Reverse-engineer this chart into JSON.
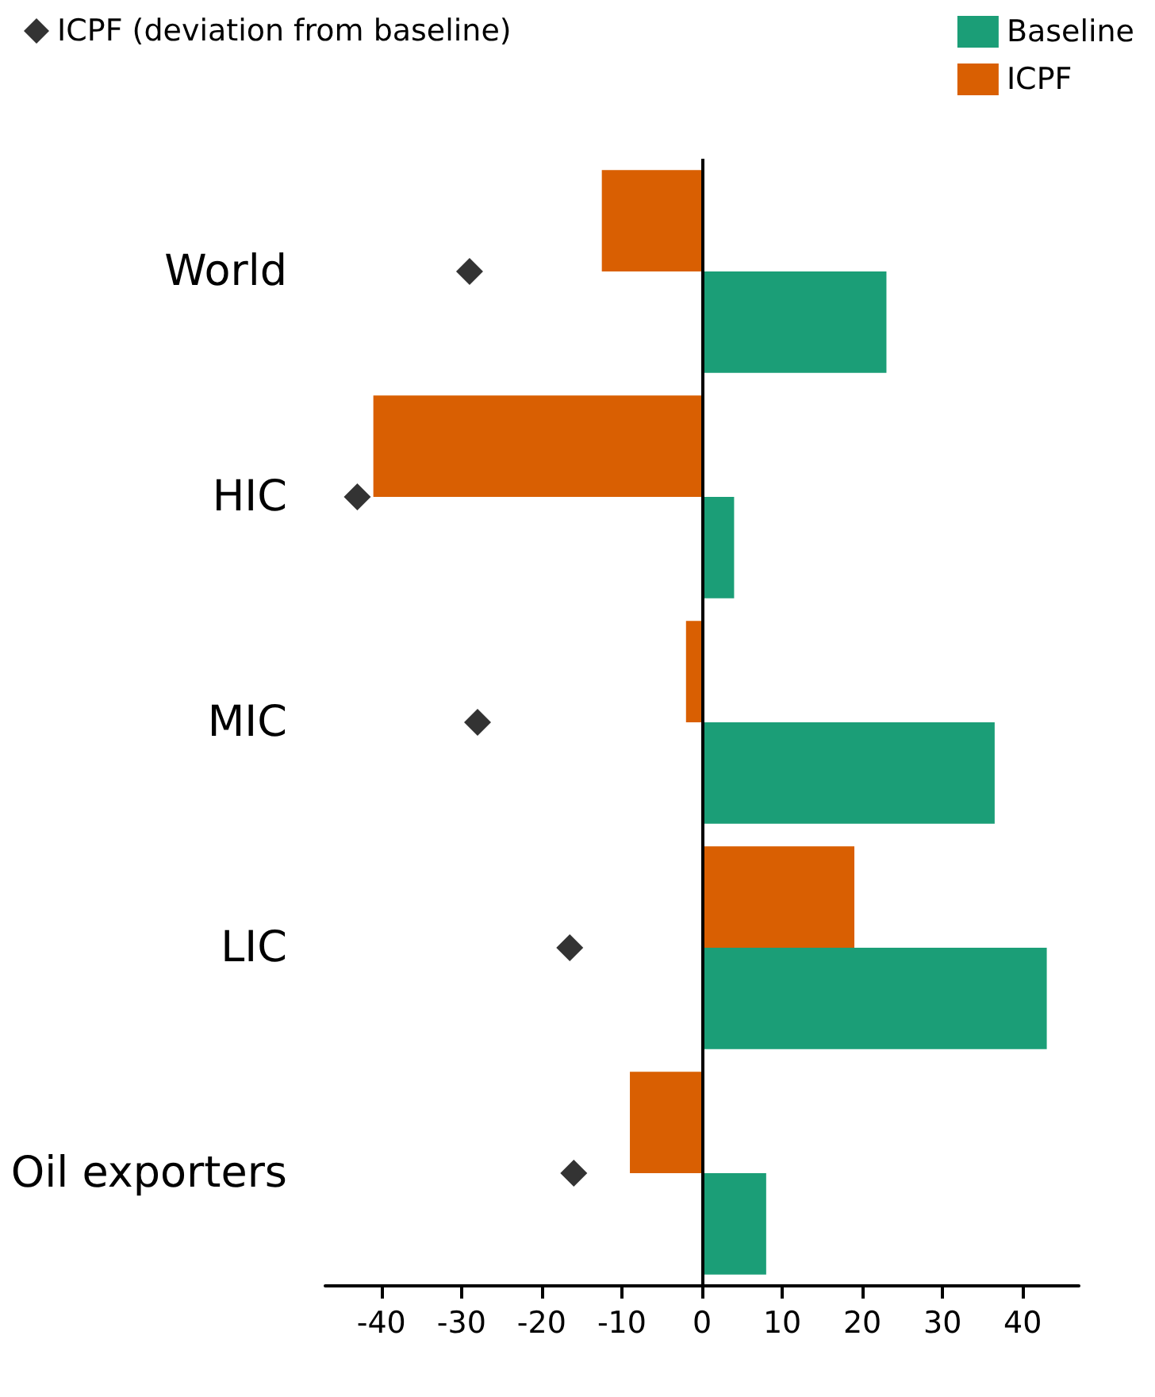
{
  "chart_data": {
    "type": "bar",
    "orientation": "horizontal",
    "categories": [
      "World",
      "HIC",
      "MIC",
      "LIC",
      "Oil exporters"
    ],
    "series": [
      {
        "name": "ICPF",
        "color": "#d95f02",
        "values": [
          -12.5,
          -41,
          -2,
          19,
          -9
        ]
      },
      {
        "name": "Baseline",
        "color": "#1b9e77",
        "values": [
          23,
          4,
          36.5,
          43,
          8
        ]
      },
      {
        "name": "ICPF (deviation from baseline)",
        "type": "scatter",
        "color": "#000000",
        "marker": "diamond",
        "values": [
          -29,
          -43,
          -28,
          -16.5,
          -16
        ]
      }
    ],
    "xlim": [
      -47,
      47
    ],
    "xticks": [
      -40,
      -30,
      -20,
      -10,
      0,
      10,
      20,
      30,
      40
    ],
    "legend": "top"
  }
}
